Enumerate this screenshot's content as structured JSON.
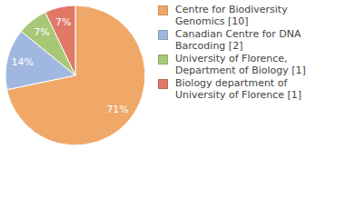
{
  "chart_data": {
    "type": "pie",
    "categories": [
      "Centre for Biodiversity Genomics [10]",
      "Canadian Centre for DNA Barcoding [2]",
      "University of Florence, Department of Biology [1]",
      "Biology department of University of Florence [1]"
    ],
    "values": [
      71,
      14,
      7,
      7
    ],
    "value_labels": [
      "71%",
      "14%",
      "7%",
      "7%"
    ],
    "colors": [
      "#f0a868",
      "#a0b8e0",
      "#a8c878",
      "#e07868"
    ],
    "data_labels": true,
    "legend": "right"
  }
}
